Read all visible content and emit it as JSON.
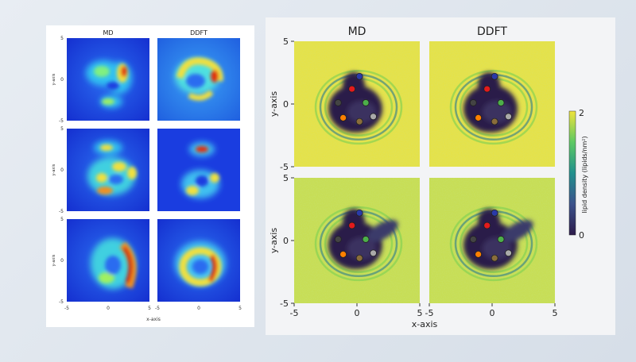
{
  "chart_data": [
    {
      "type": "heatmap",
      "columns": [
        "MD",
        "DDFT"
      ],
      "rows": 3,
      "xlabel": "x-axis",
      "ylabel": "y-axis",
      "xlim": [
        -5,
        5
      ],
      "ylim": [
        -5,
        5
      ],
      "x_ticks": [
        "-5",
        "0",
        "5"
      ],
      "y_ticks": [
        "5",
        "0",
        "-5"
      ],
      "colormap": "jet"
    },
    {
      "type": "heatmap",
      "columns": [
        "MD",
        "DDFT"
      ],
      "rows": 2,
      "xlabel": "x-axis",
      "ylabel": "y-axis",
      "xlim": [
        -5,
        5
      ],
      "ylim": [
        -5,
        5
      ],
      "x_ticks": [
        "-5",
        "0",
        "5"
      ],
      "y_ticks": [
        "5",
        "0",
        "-5"
      ],
      "colorbar": {
        "label": "lipid density (lipids/nm²)",
        "min": 0,
        "max": 2,
        "tick_min": "0",
        "tick_max": "2"
      },
      "colormap": "viridis",
      "markers": [
        {
          "x": -1.5,
          "y": 0.1,
          "color": "#444444"
        },
        {
          "x": -0.4,
          "y": 1.2,
          "color": "#e41a1c"
        },
        {
          "x": 0.2,
          "y": 2.2,
          "color": "#2a3aa8"
        },
        {
          "x": 0.7,
          "y": 0.1,
          "color": "#4daf4a"
        },
        {
          "x": 1.3,
          "y": -1.0,
          "color": "#aaaaaa"
        },
        {
          "x": -1.1,
          "y": -1.1,
          "color": "#ff7f00"
        },
        {
          "x": 0.2,
          "y": -1.4,
          "color": "#8a6d3b"
        }
      ]
    }
  ],
  "colors": {
    "jet_background": "#1a3de0",
    "viridis_high": "#efe33b",
    "viridis_low": "#2c1a4a"
  }
}
